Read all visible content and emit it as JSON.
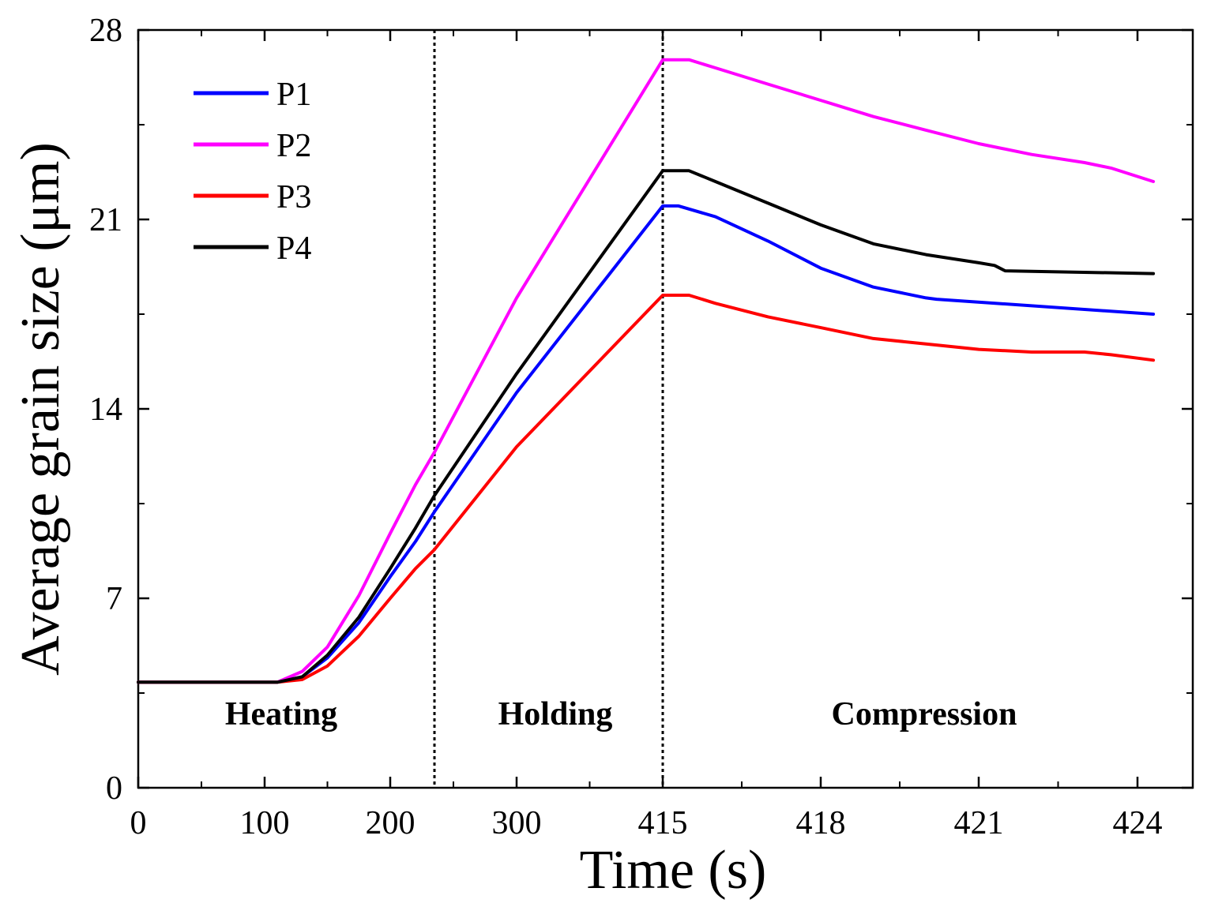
{
  "chart_data": {
    "type": "line",
    "title": "",
    "xlabel": "Time (s)",
    "ylabel": "Average grain size (μm)",
    "ylim": [
      0,
      28
    ],
    "yticks": [
      "0",
      "7",
      "14",
      "21",
      "28"
    ],
    "xticks": [
      "0",
      "100",
      "200",
      "300",
      "415",
      "418",
      "421",
      "424"
    ],
    "x_scale_note": "piecewise axis: 0-415 s linear, then 415-424 s expanded",
    "phase_boundaries": [
      235,
      415
    ],
    "regions": [
      "Heating",
      "Holding",
      "Compression"
    ],
    "legend_position": "top-left",
    "series": [
      {
        "name": "P1",
        "color": "#0000ff",
        "points": [
          [
            0,
            3.9
          ],
          [
            110,
            3.9
          ],
          [
            130,
            4.1
          ],
          [
            150,
            4.8
          ],
          [
            175,
            6.1
          ],
          [
            200,
            7.8
          ],
          [
            220,
            9.1
          ],
          [
            235,
            10.2
          ],
          [
            300,
            14.6
          ],
          [
            415,
            21.5
          ],
          [
            415.3,
            21.5
          ],
          [
            416,
            21.1
          ],
          [
            417,
            20.2
          ],
          [
            418,
            19.2
          ],
          [
            419,
            18.5
          ],
          [
            420,
            18.1
          ],
          [
            420.2,
            18.05
          ],
          [
            424.3,
            17.5
          ]
        ]
      },
      {
        "name": "P2",
        "color": "#ff00ff",
        "points": [
          [
            0,
            3.9
          ],
          [
            110,
            3.9
          ],
          [
            130,
            4.3
          ],
          [
            150,
            5.2
          ],
          [
            175,
            7.1
          ],
          [
            200,
            9.4
          ],
          [
            220,
            11.2
          ],
          [
            235,
            12.4
          ],
          [
            300,
            18.1
          ],
          [
            415,
            26.9
          ],
          [
            415.5,
            26.9
          ],
          [
            416,
            26.6
          ],
          [
            417,
            26.0
          ],
          [
            418,
            25.4
          ],
          [
            419,
            24.8
          ],
          [
            420,
            24.3
          ],
          [
            421,
            23.8
          ],
          [
            422,
            23.4
          ],
          [
            423,
            23.1
          ],
          [
            423.5,
            22.9
          ],
          [
            424.3,
            22.4
          ]
        ]
      },
      {
        "name": "P3",
        "color": "#ff0000",
        "points": [
          [
            0,
            3.9
          ],
          [
            110,
            3.9
          ],
          [
            130,
            4.0
          ],
          [
            150,
            4.5
          ],
          [
            175,
            5.6
          ],
          [
            200,
            7.0
          ],
          [
            220,
            8.1
          ],
          [
            235,
            8.8
          ],
          [
            300,
            12.6
          ],
          [
            415,
            18.2
          ],
          [
            415.5,
            18.2
          ],
          [
            416,
            17.9
          ],
          [
            417,
            17.4
          ],
          [
            418,
            17.0
          ],
          [
            419,
            16.6
          ],
          [
            420,
            16.4
          ],
          [
            421,
            16.2
          ],
          [
            422,
            16.1
          ],
          [
            423,
            16.1
          ],
          [
            423.5,
            16.0
          ],
          [
            424.3,
            15.8
          ]
        ]
      },
      {
        "name": "P4",
        "color": "#000000",
        "points": [
          [
            0,
            3.9
          ],
          [
            110,
            3.9
          ],
          [
            130,
            4.1
          ],
          [
            150,
            4.9
          ],
          [
            175,
            6.3
          ],
          [
            200,
            8.1
          ],
          [
            220,
            9.6
          ],
          [
            235,
            10.8
          ],
          [
            300,
            15.3
          ],
          [
            415,
            22.8
          ],
          [
            415.5,
            22.8
          ],
          [
            416,
            22.4
          ],
          [
            417,
            21.6
          ],
          [
            418,
            20.8
          ],
          [
            419,
            20.1
          ],
          [
            420,
            19.7
          ],
          [
            421,
            19.4
          ],
          [
            421.3,
            19.3
          ],
          [
            421.5,
            19.1
          ],
          [
            424.3,
            19.0
          ]
        ]
      }
    ]
  }
}
